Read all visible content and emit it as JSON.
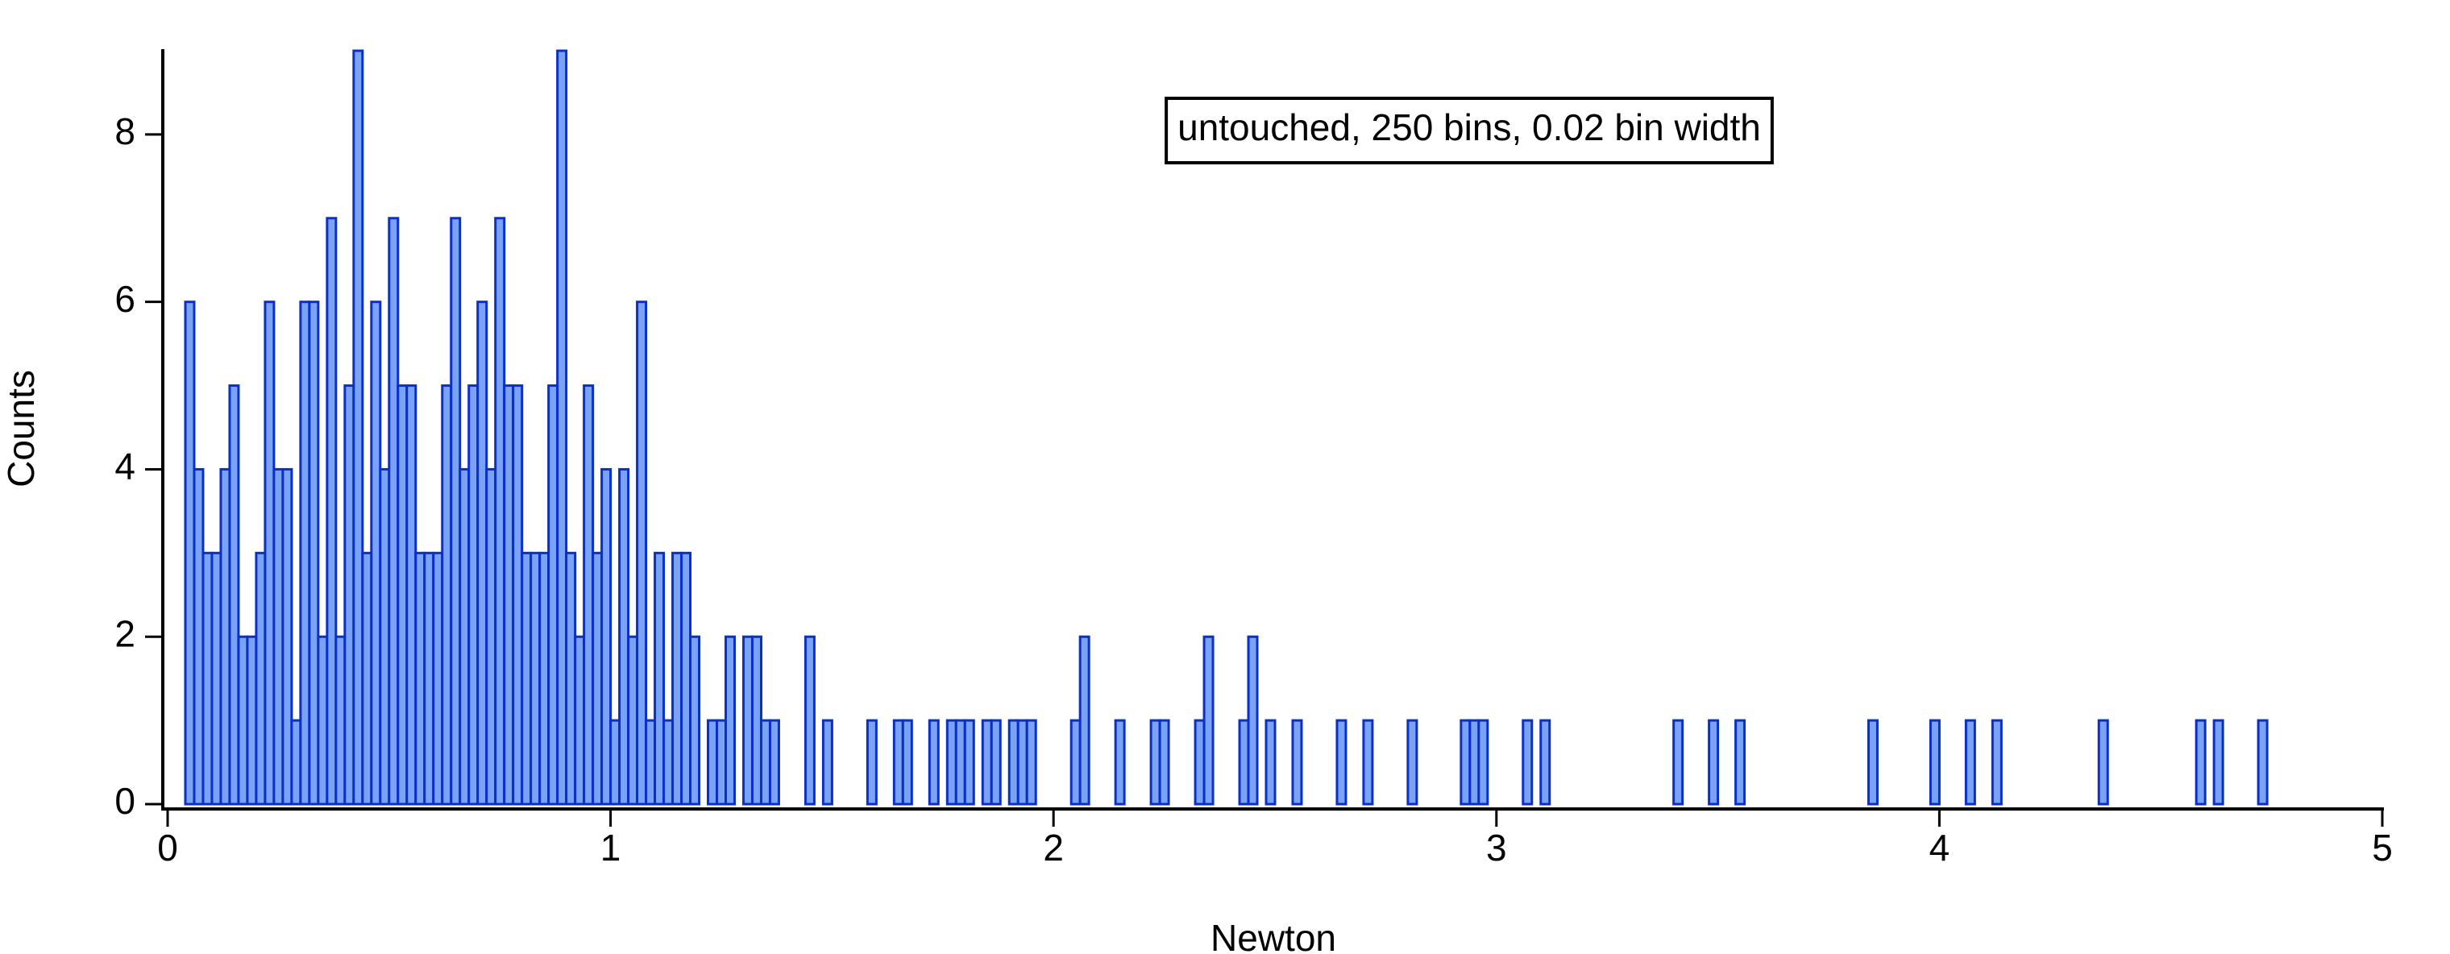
{
  "chart_data": {
    "type": "histogram",
    "annotation": "untouched, 250 bins, 0.02 bin width",
    "x_label": "Newton",
    "y_label": "Counts",
    "fill_color": "#7aa3f5",
    "edge_color": "#0b2fc9",
    "xlim": [
      0,
      5
    ],
    "ylim": [
      0,
      9
    ],
    "xticks": [
      0,
      1,
      2,
      3,
      4,
      5
    ],
    "yticks": [
      0,
      2,
      4,
      6,
      8
    ],
    "bins": [
      0,
      0.02,
      0.04,
      0.06,
      0.08,
      0.1,
      0.12,
      0.14,
      0.16,
      0.18,
      0.2,
      0.22,
      0.24,
      0.26,
      0.28,
      0.3,
      0.32,
      0.34,
      0.36,
      0.38,
      0.4,
      0.42,
      0.44,
      0.46,
      0.48,
      0.5,
      0.52,
      0.54,
      0.56,
      0.58,
      0.6,
      0.62,
      0.64,
      0.66,
      0.68,
      0.7,
      0.72,
      0.74,
      0.76,
      0.78,
      0.8,
      0.82,
      0.84,
      0.86,
      0.88,
      0.9,
      0.92,
      0.94,
      0.96,
      0.98,
      1,
      1.02,
      1.04,
      1.06,
      1.08,
      1.1,
      1.12,
      1.14,
      1.16,
      1.18,
      1.2,
      1.22,
      1.24,
      1.26,
      1.28,
      1.3,
      1.32,
      1.34,
      1.36,
      1.38,
      1.4,
      1.42,
      1.44,
      1.46,
      1.48,
      1.5,
      1.52,
      1.54,
      1.56,
      1.58,
      1.6,
      1.62,
      1.64,
      1.66,
      1.68,
      1.7,
      1.72,
      1.74,
      1.76,
      1.78,
      1.8,
      1.82,
      1.84,
      1.86,
      1.88,
      1.9,
      1.92,
      1.94,
      1.96,
      1.98,
      2,
      2.02,
      2.04,
      2.06,
      2.08,
      2.1,
      2.12,
      2.14,
      2.16,
      2.18,
      2.2,
      2.22,
      2.24,
      2.26,
      2.28,
      2.3,
      2.32,
      2.34,
      2.36,
      2.38,
      2.4,
      2.42,
      2.44,
      2.46,
      2.48,
      2.5,
      2.52,
      2.54,
      2.56,
      2.58,
      2.6,
      2.62,
      2.64,
      2.66,
      2.68,
      2.7,
      2.72,
      2.74,
      2.76,
      2.78,
      2.8,
      2.82,
      2.84,
      2.86,
      2.88,
      2.9,
      2.92,
      2.94,
      2.96,
      2.98,
      3,
      3.02,
      3.04,
      3.06,
      3.08,
      3.1,
      3.12,
      3.14,
      3.16,
      3.18,
      3.2,
      3.22,
      3.24,
      3.26,
      3.28,
      3.3,
      3.32,
      3.34,
      3.36,
      3.38,
      3.4,
      3.42,
      3.44,
      3.46,
      3.48,
      3.5,
      3.52,
      3.54,
      3.56,
      3.58,
      3.6,
      3.62,
      3.64,
      3.66,
      3.68,
      3.7,
      3.72,
      3.74,
      3.76,
      3.78,
      3.8,
      3.82,
      3.84,
      3.86,
      3.88,
      3.9,
      3.92,
      3.94,
      3.96,
      3.98,
      4,
      4.02,
      4.04,
      4.06,
      4.08,
      4.1,
      4.12,
      4.14,
      4.16,
      4.18,
      4.2,
      4.22,
      4.24,
      4.26,
      4.28,
      4.3,
      4.32,
      4.34,
      4.36,
      4.38,
      4.4,
      4.42,
      4.44,
      4.46,
      4.48,
      4.5,
      4.52,
      4.54,
      4.56,
      4.58,
      4.6,
      4.62,
      4.64,
      4.66,
      4.68,
      4.7,
      4.72,
      4.74,
      4.76,
      4.78,
      4.8,
      4.82,
      4.84,
      4.86,
      4.88,
      4.9,
      4.92,
      4.94,
      4.96,
      4.98,
      5
    ],
    "counts": [
      0,
      0,
      6,
      4,
      3,
      3,
      4,
      5,
      2,
      2,
      3,
      6,
      4,
      4,
      1,
      6,
      6,
      2,
      7,
      2,
      5,
      9,
      3,
      6,
      4,
      7,
      5,
      5,
      3,
      3,
      3,
      5,
      7,
      4,
      5,
      6,
      4,
      7,
      5,
      5,
      3,
      3,
      3,
      5,
      9,
      3,
      2,
      5,
      3,
      4,
      1,
      4,
      2,
      6,
      1,
      3,
      1,
      3,
      3,
      2,
      0,
      1,
      1,
      2,
      0,
      2,
      2,
      1,
      1,
      0,
      0,
      0,
      2,
      0,
      1,
      0,
      0,
      0,
      0,
      1,
      0,
      0,
      1,
      1,
      0,
      0,
      1,
      0,
      1,
      1,
      1,
      0,
      1,
      1,
      0,
      1,
      1,
      1,
      0,
      0,
      0,
      0,
      1,
      2,
      0,
      0,
      0,
      1,
      0,
      0,
      0,
      1,
      1,
      0,
      0,
      0,
      1,
      2,
      0,
      0,
      0,
      1,
      2,
      0,
      1,
      0,
      0,
      1,
      0,
      0,
      0,
      0,
      1,
      0,
      0,
      1,
      0,
      0,
      0,
      0,
      1,
      0,
      0,
      0,
      0,
      0,
      1,
      1,
      1,
      0,
      0,
      0,
      0,
      1,
      0,
      1,
      0,
      0,
      0,
      0,
      0,
      0,
      0,
      0,
      0,
      0,
      0,
      0,
      0,
      0,
      1,
      0,
      0,
      0,
      1,
      0,
      0,
      1,
      0,
      0,
      0,
      0,
      0,
      0,
      0,
      0,
      0,
      0,
      0,
      0,
      0,
      0,
      1,
      0,
      0,
      0,
      0,
      0,
      0,
      1,
      0,
      0,
      0,
      1,
      0,
      0,
      1,
      0,
      0,
      0,
      0,
      0,
      0,
      0,
      0,
      0,
      0,
      0,
      1,
      0,
      0,
      0,
      0,
      0,
      0,
      0,
      0,
      0,
      0,
      1,
      0,
      1,
      0,
      0,
      0,
      0,
      1,
      0,
      0,
      0,
      0,
      0,
      0,
      0,
      0,
      0,
      0,
      0,
      0,
      0
    ]
  }
}
